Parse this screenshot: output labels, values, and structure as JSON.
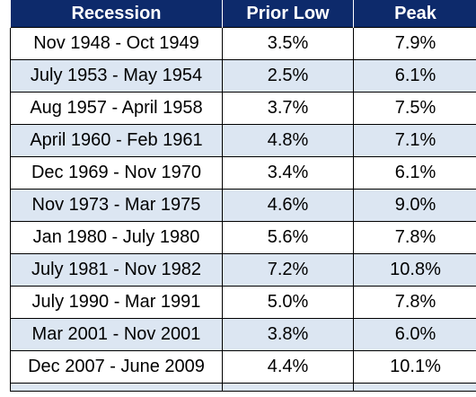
{
  "table": {
    "headers": [
      "Recession",
      "Prior Low",
      "Peak"
    ],
    "rows": [
      [
        "Nov 1948 - Oct 1949",
        "3.5%",
        "7.9%"
      ],
      [
        "July 1953 - May 1954",
        "2.5%",
        "6.1%"
      ],
      [
        "Aug 1957 - April 1958",
        "3.7%",
        "7.5%"
      ],
      [
        "April 1960 - Feb 1961",
        "4.8%",
        "7.1%"
      ],
      [
        "Dec 1969 - Nov 1970",
        "3.4%",
        "6.1%"
      ],
      [
        "Nov 1973 - Mar 1975",
        "4.6%",
        "9.0%"
      ],
      [
        "Jan 1980 - July 1980",
        "5.6%",
        "7.8%"
      ],
      [
        "July 1981 - Nov 1982",
        "7.2%",
        "10.8%"
      ],
      [
        "July 1990 - Mar 1991",
        "5.0%",
        "7.8%"
      ],
      [
        "Mar 2001 - Nov 2001",
        "3.8%",
        "6.0%"
      ],
      [
        "Dec 2007 - June 2009",
        "4.4%",
        "10.1%"
      ]
    ]
  },
  "colors": {
    "header_bg": "#0d2a6b",
    "header_text": "#ffffff",
    "row_alt_bg": "#dce6f2",
    "row_bg": "#ffffff",
    "border": "#000000"
  }
}
